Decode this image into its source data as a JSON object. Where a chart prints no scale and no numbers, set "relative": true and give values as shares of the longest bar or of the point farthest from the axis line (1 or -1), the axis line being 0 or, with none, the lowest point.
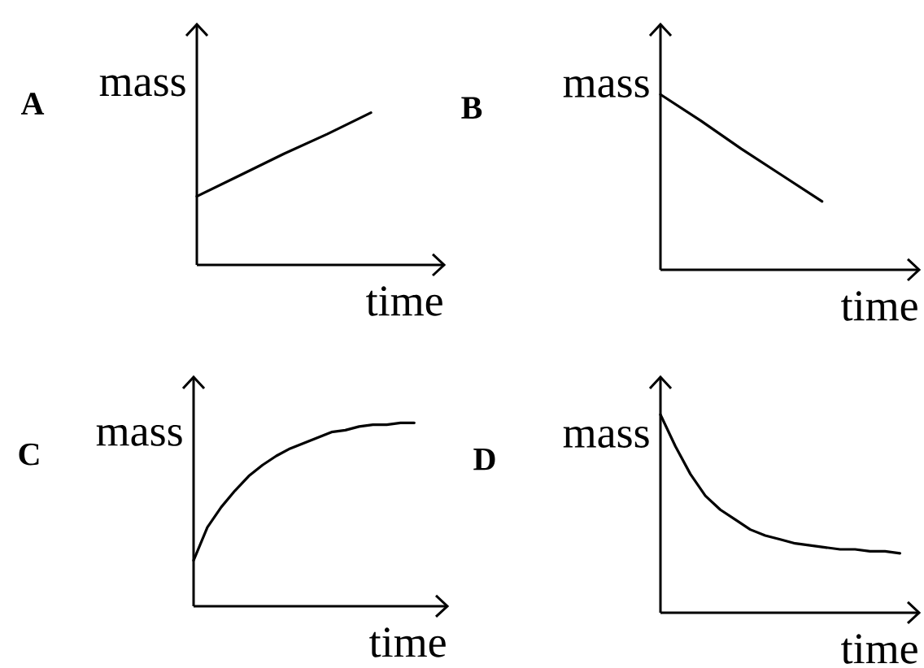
{
  "chart_data": [
    {
      "type": "line",
      "title": "A",
      "xlabel": "time",
      "ylabel": "mass",
      "relative": true,
      "color": "#000000",
      "categories": [
        null,
        null,
        null,
        null,
        null
      ],
      "values": [
        0.45,
        0.59,
        0.73,
        0.86,
        1.0
      ]
    },
    {
      "type": "line",
      "title": "B",
      "xlabel": "time",
      "ylabel": "mass",
      "relative": true,
      "color": "#000000",
      "categories": [
        null,
        null,
        null,
        null,
        null
      ],
      "values": [
        1.0,
        0.85,
        0.69,
        0.54,
        0.39
      ]
    },
    {
      "type": "line",
      "title": "C",
      "xlabel": "time",
      "ylabel": "mass",
      "relative": true,
      "color": "#000000",
      "categories": [
        null,
        null,
        null,
        null,
        null,
        null,
        null,
        null,
        null,
        null,
        null,
        null,
        null,
        null,
        null,
        null,
        null
      ],
      "values": [
        0.25,
        0.43,
        0.54,
        0.63,
        0.71,
        0.77,
        0.82,
        0.86,
        0.89,
        0.92,
        0.95,
        0.96,
        0.98,
        0.99,
        0.99,
        1.0,
        1.0
      ]
    },
    {
      "type": "line",
      "title": "D",
      "xlabel": "time",
      "ylabel": "mass",
      "relative": true,
      "color": "#000000",
      "categories": [
        null,
        null,
        null,
        null,
        null,
        null,
        null,
        null,
        null,
        null,
        null,
        null,
        null,
        null,
        null,
        null,
        null
      ],
      "values": [
        1.0,
        0.84,
        0.7,
        0.59,
        0.52,
        0.47,
        0.42,
        0.39,
        0.37,
        0.35,
        0.34,
        0.33,
        0.32,
        0.32,
        0.31,
        0.31,
        0.3
      ]
    }
  ]
}
